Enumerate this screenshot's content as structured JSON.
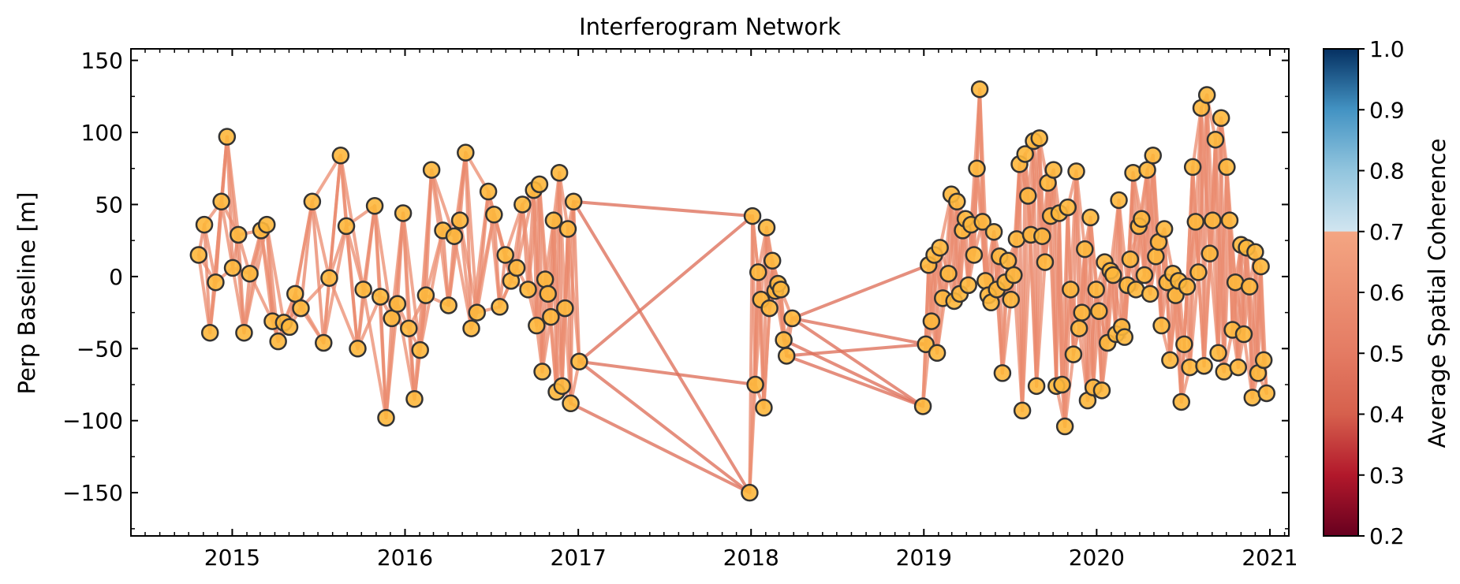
{
  "chart_data": {
    "type": "scatter",
    "title": "Interferogram Network",
    "xlabel": "",
    "ylabel": "Perp Baseline [m]",
    "x_range": [
      "2014-06-01",
      "2021-02-10"
    ],
    "ylim": [
      -180,
      158
    ],
    "x_ticks": [
      "2015",
      "2016",
      "2017",
      "2018",
      "2019",
      "2020",
      "2021"
    ],
    "y_ticks": [
      150,
      100,
      50,
      0,
      -50,
      -100,
      -150
    ],
    "y_tick_labels": [
      "150",
      "100",
      "50",
      "0",
      "−50",
      "−100",
      "−150"
    ],
    "grid": false,
    "colorbar": {
      "label": "Average Spatial Coherence",
      "min": 0.2,
      "max": 1.0,
      "ticks": [
        "1.0",
        "0.9",
        "0.8",
        "0.7",
        "0.6",
        "0.5",
        "0.4",
        "0.3",
        "0.2"
      ],
      "colormap": "RdBu",
      "colors": [
        "#67001f",
        "#b2182b",
        "#d6604d",
        "#f4a582",
        "#d1e5f0",
        "#92c5de",
        "#4393c3",
        "#2166ac",
        "#053061"
      ]
    },
    "marker_color": "#fdb73c",
    "marker_edge": "#333333",
    "acquisitions": [
      {
        "date": "2014-10-22",
        "bperp": 15
      },
      {
        "date": "2014-11-03",
        "bperp": 36
      },
      {
        "date": "2014-11-15",
        "bperp": -39
      },
      {
        "date": "2014-11-27",
        "bperp": -4
      },
      {
        "date": "2014-12-09",
        "bperp": 52
      },
      {
        "date": "2014-12-21",
        "bperp": 97
      },
      {
        "date": "2015-01-02",
        "bperp": 6
      },
      {
        "date": "2015-01-14",
        "bperp": 29
      },
      {
        "date": "2015-01-26",
        "bperp": -39
      },
      {
        "date": "2015-02-07",
        "bperp": 2
      },
      {
        "date": "2015-03-03",
        "bperp": 32
      },
      {
        "date": "2015-03-15",
        "bperp": 36
      },
      {
        "date": "2015-03-27",
        "bperp": -31
      },
      {
        "date": "2015-04-08",
        "bperp": -45
      },
      {
        "date": "2015-04-20",
        "bperp": -32
      },
      {
        "date": "2015-05-02",
        "bperp": -35
      },
      {
        "date": "2015-05-14",
        "bperp": -12
      },
      {
        "date": "2015-05-26",
        "bperp": -22
      },
      {
        "date": "2015-06-19",
        "bperp": 52
      },
      {
        "date": "2015-07-13",
        "bperp": -46
      },
      {
        "date": "2015-07-25",
        "bperp": -1
      },
      {
        "date": "2015-08-18",
        "bperp": 84
      },
      {
        "date": "2015-08-30",
        "bperp": 35
      },
      {
        "date": "2015-09-23",
        "bperp": -50
      },
      {
        "date": "2015-10-05",
        "bperp": -9
      },
      {
        "date": "2015-10-29",
        "bperp": 49
      },
      {
        "date": "2015-11-10",
        "bperp": -14
      },
      {
        "date": "2015-11-22",
        "bperp": -98
      },
      {
        "date": "2015-12-04",
        "bperp": -29
      },
      {
        "date": "2015-12-16",
        "bperp": -19
      },
      {
        "date": "2015-12-28",
        "bperp": 44
      },
      {
        "date": "2016-01-09",
        "bperp": -36
      },
      {
        "date": "2016-01-21",
        "bperp": -85
      },
      {
        "date": "2016-02-02",
        "bperp": -51
      },
      {
        "date": "2016-02-14",
        "bperp": -13
      },
      {
        "date": "2016-02-26",
        "bperp": 74
      },
      {
        "date": "2016-03-21",
        "bperp": 32
      },
      {
        "date": "2016-04-02",
        "bperp": -20
      },
      {
        "date": "2016-04-14",
        "bperp": 28
      },
      {
        "date": "2016-04-26",
        "bperp": 39
      },
      {
        "date": "2016-05-08",
        "bperp": 86
      },
      {
        "date": "2016-05-20",
        "bperp": -36
      },
      {
        "date": "2016-06-01",
        "bperp": -25
      },
      {
        "date": "2016-06-25",
        "bperp": 59
      },
      {
        "date": "2016-07-07",
        "bperp": 43
      },
      {
        "date": "2016-07-19",
        "bperp": -21
      },
      {
        "date": "2016-07-31",
        "bperp": 15
      },
      {
        "date": "2016-08-12",
        "bperp": -3
      },
      {
        "date": "2016-08-24",
        "bperp": 6
      },
      {
        "date": "2016-09-05",
        "bperp": 50
      },
      {
        "date": "2016-09-17",
        "bperp": -9
      },
      {
        "date": "2016-09-29",
        "bperp": 60
      },
      {
        "date": "2016-10-05",
        "bperp": -34
      },
      {
        "date": "2016-10-11",
        "bperp": 64
      },
      {
        "date": "2016-10-17",
        "bperp": -66
      },
      {
        "date": "2016-10-23",
        "bperp": -2
      },
      {
        "date": "2016-10-29",
        "bperp": -12
      },
      {
        "date": "2016-11-04",
        "bperp": -28
      },
      {
        "date": "2016-11-10",
        "bperp": 39
      },
      {
        "date": "2016-11-16",
        "bperp": -80
      },
      {
        "date": "2016-11-22",
        "bperp": 72
      },
      {
        "date": "2016-11-28",
        "bperp": -76
      },
      {
        "date": "2016-12-04",
        "bperp": -22
      },
      {
        "date": "2016-12-10",
        "bperp": 33
      },
      {
        "date": "2016-12-16",
        "bperp": -88
      },
      {
        "date": "2016-12-22",
        "bperp": 52
      },
      {
        "date": "2017-01-03",
        "bperp": -59
      },
      {
        "date": "2017-12-29",
        "bperp": -150
      },
      {
        "date": "2018-01-04",
        "bperp": 42
      },
      {
        "date": "2018-01-10",
        "bperp": -75
      },
      {
        "date": "2018-01-16",
        "bperp": 3
      },
      {
        "date": "2018-01-22",
        "bperp": -16
      },
      {
        "date": "2018-01-28",
        "bperp": -91
      },
      {
        "date": "2018-02-03",
        "bperp": 34
      },
      {
        "date": "2018-02-09",
        "bperp": -22
      },
      {
        "date": "2018-02-15",
        "bperp": 11
      },
      {
        "date": "2018-02-21",
        "bperp": -10
      },
      {
        "date": "2018-02-27",
        "bperp": -5
      },
      {
        "date": "2018-03-05",
        "bperp": -9
      },
      {
        "date": "2018-03-11",
        "bperp": -44
      },
      {
        "date": "2018-03-17",
        "bperp": -55
      },
      {
        "date": "2018-03-29",
        "bperp": -29
      },
      {
        "date": "2018-12-30",
        "bperp": -90
      },
      {
        "date": "2019-01-05",
        "bperp": -47
      },
      {
        "date": "2019-01-11",
        "bperp": 8
      },
      {
        "date": "2019-01-17",
        "bperp": -31
      },
      {
        "date": "2019-01-23",
        "bperp": 15
      },
      {
        "date": "2019-01-29",
        "bperp": -53
      },
      {
        "date": "2019-02-04",
        "bperp": 20
      },
      {
        "date": "2019-02-10",
        "bperp": -15
      },
      {
        "date": "2019-02-22",
        "bperp": 2
      },
      {
        "date": "2019-02-28",
        "bperp": 57
      },
      {
        "date": "2019-03-06",
        "bperp": -17
      },
      {
        "date": "2019-03-12",
        "bperp": 52
      },
      {
        "date": "2019-03-18",
        "bperp": -12
      },
      {
        "date": "2019-03-24",
        "bperp": 32
      },
      {
        "date": "2019-03-30",
        "bperp": 40
      },
      {
        "date": "2019-04-05",
        "bperp": -6
      },
      {
        "date": "2019-04-11",
        "bperp": 36
      },
      {
        "date": "2019-04-17",
        "bperp": 15
      },
      {
        "date": "2019-04-23",
        "bperp": 75
      },
      {
        "date": "2019-04-29",
        "bperp": 130
      },
      {
        "date": "2019-05-05",
        "bperp": 38
      },
      {
        "date": "2019-05-11",
        "bperp": -3
      },
      {
        "date": "2019-05-17",
        "bperp": -13
      },
      {
        "date": "2019-05-23",
        "bperp": -18
      },
      {
        "date": "2019-05-29",
        "bperp": 31
      },
      {
        "date": "2019-06-04",
        "bperp": -9
      },
      {
        "date": "2019-06-10",
        "bperp": 14
      },
      {
        "date": "2019-06-16",
        "bperp": -67
      },
      {
        "date": "2019-06-22",
        "bperp": -4
      },
      {
        "date": "2019-06-28",
        "bperp": 11
      },
      {
        "date": "2019-07-04",
        "bperp": -16
      },
      {
        "date": "2019-07-10",
        "bperp": 1
      },
      {
        "date": "2019-07-16",
        "bperp": 26
      },
      {
        "date": "2019-07-22",
        "bperp": 78
      },
      {
        "date": "2019-07-28",
        "bperp": -93
      },
      {
        "date": "2019-08-03",
        "bperp": 85
      },
      {
        "date": "2019-08-09",
        "bperp": 56
      },
      {
        "date": "2019-08-15",
        "bperp": 29
      },
      {
        "date": "2019-08-21",
        "bperp": 94
      },
      {
        "date": "2019-08-27",
        "bperp": -76
      },
      {
        "date": "2019-09-02",
        "bperp": 96
      },
      {
        "date": "2019-09-08",
        "bperp": 28
      },
      {
        "date": "2019-09-14",
        "bperp": 10
      },
      {
        "date": "2019-09-20",
        "bperp": 65
      },
      {
        "date": "2019-09-26",
        "bperp": 42
      },
      {
        "date": "2019-10-02",
        "bperp": 74
      },
      {
        "date": "2019-10-08",
        "bperp": -76
      },
      {
        "date": "2019-10-14",
        "bperp": 44
      },
      {
        "date": "2019-10-20",
        "bperp": -75
      },
      {
        "date": "2019-10-26",
        "bperp": -104
      },
      {
        "date": "2019-11-01",
        "bperp": 48
      },
      {
        "date": "2019-11-07",
        "bperp": -9
      },
      {
        "date": "2019-11-13",
        "bperp": -54
      },
      {
        "date": "2019-11-19",
        "bperp": 73
      },
      {
        "date": "2019-11-25",
        "bperp": -36
      },
      {
        "date": "2019-12-01",
        "bperp": -25
      },
      {
        "date": "2019-12-07",
        "bperp": 19
      },
      {
        "date": "2019-12-13",
        "bperp": -86
      },
      {
        "date": "2019-12-19",
        "bperp": 41
      },
      {
        "date": "2019-12-25",
        "bperp": -77
      },
      {
        "date": "2019-12-31",
        "bperp": -9
      },
      {
        "date": "2020-01-06",
        "bperp": -24
      },
      {
        "date": "2020-01-12",
        "bperp": -79
      },
      {
        "date": "2020-01-18",
        "bperp": 10
      },
      {
        "date": "2020-01-24",
        "bperp": -46
      },
      {
        "date": "2020-01-30",
        "bperp": 4
      },
      {
        "date": "2020-02-05",
        "bperp": 1
      },
      {
        "date": "2020-02-11",
        "bperp": -40
      },
      {
        "date": "2020-02-17",
        "bperp": 53
      },
      {
        "date": "2020-02-23",
        "bperp": -35
      },
      {
        "date": "2020-02-29",
        "bperp": -42
      },
      {
        "date": "2020-03-06",
        "bperp": -6
      },
      {
        "date": "2020-03-12",
        "bperp": 12
      },
      {
        "date": "2020-03-18",
        "bperp": 72
      },
      {
        "date": "2020-03-24",
        "bperp": -9
      },
      {
        "date": "2020-03-30",
        "bperp": 35
      },
      {
        "date": "2020-04-05",
        "bperp": 40
      },
      {
        "date": "2020-04-11",
        "bperp": 1
      },
      {
        "date": "2020-04-17",
        "bperp": 74
      },
      {
        "date": "2020-04-23",
        "bperp": -12
      },
      {
        "date": "2020-04-29",
        "bperp": 84
      },
      {
        "date": "2020-05-05",
        "bperp": 14
      },
      {
        "date": "2020-05-11",
        "bperp": 24
      },
      {
        "date": "2020-05-17",
        "bperp": -34
      },
      {
        "date": "2020-05-23",
        "bperp": 33
      },
      {
        "date": "2020-05-29",
        "bperp": -4
      },
      {
        "date": "2020-06-04",
        "bperp": -58
      },
      {
        "date": "2020-06-10",
        "bperp": 2
      },
      {
        "date": "2020-06-16",
        "bperp": -13
      },
      {
        "date": "2020-06-22",
        "bperp": -3
      },
      {
        "date": "2020-06-28",
        "bperp": -87
      },
      {
        "date": "2020-07-04",
        "bperp": -47
      },
      {
        "date": "2020-07-10",
        "bperp": -7
      },
      {
        "date": "2020-07-16",
        "bperp": -63
      },
      {
        "date": "2020-07-22",
        "bperp": 76
      },
      {
        "date": "2020-07-28",
        "bperp": 38
      },
      {
        "date": "2020-08-03",
        "bperp": 3
      },
      {
        "date": "2020-08-09",
        "bperp": 117
      },
      {
        "date": "2020-08-15",
        "bperp": -62
      },
      {
        "date": "2020-08-21",
        "bperp": 126
      },
      {
        "date": "2020-08-27",
        "bperp": 16
      },
      {
        "date": "2020-09-02",
        "bperp": 39
      },
      {
        "date": "2020-09-08",
        "bperp": 95
      },
      {
        "date": "2020-09-14",
        "bperp": -53
      },
      {
        "date": "2020-09-20",
        "bperp": 110
      },
      {
        "date": "2020-09-26",
        "bperp": -66
      },
      {
        "date": "2020-10-02",
        "bperp": 76
      },
      {
        "date": "2020-10-08",
        "bperp": 39
      },
      {
        "date": "2020-10-14",
        "bperp": -37
      },
      {
        "date": "2020-10-20",
        "bperp": -4
      },
      {
        "date": "2020-10-26",
        "bperp": -63
      },
      {
        "date": "2020-11-01",
        "bperp": 22
      },
      {
        "date": "2020-11-07",
        "bperp": -40
      },
      {
        "date": "2020-11-13",
        "bperp": 20
      },
      {
        "date": "2020-11-19",
        "bperp": -7
      },
      {
        "date": "2020-11-25",
        "bperp": -84
      },
      {
        "date": "2020-12-01",
        "bperp": 17
      },
      {
        "date": "2020-12-07",
        "bperp": -67
      },
      {
        "date": "2020-12-13",
        "bperp": 7
      },
      {
        "date": "2020-12-19",
        "bperp": -58
      },
      {
        "date": "2020-12-25",
        "bperp": -81
      }
    ]
  }
}
